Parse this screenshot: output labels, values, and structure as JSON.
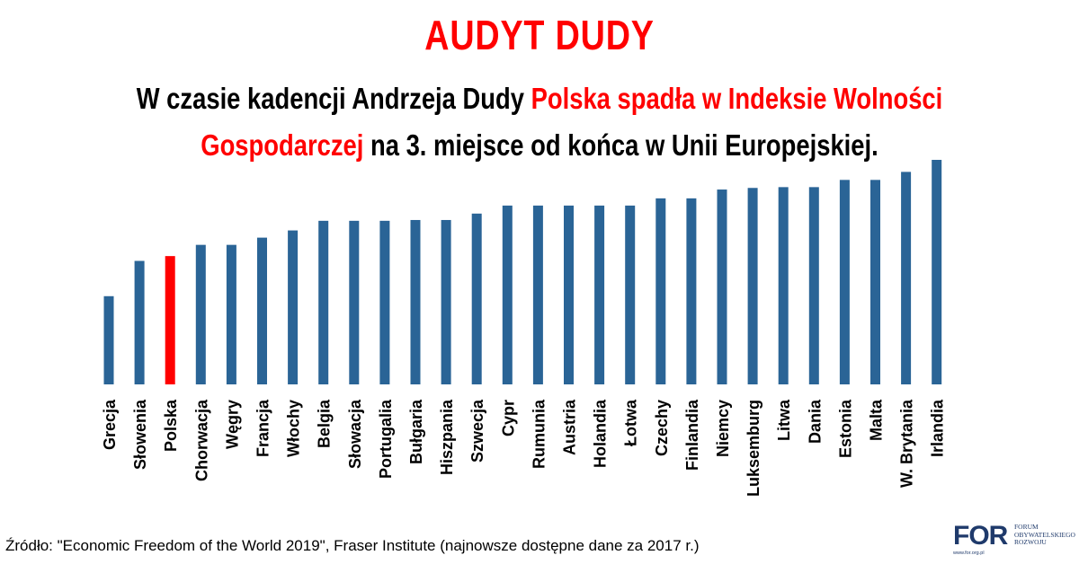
{
  "header": {
    "title": "AUDYT DUDY",
    "subtitle_part1": "W czasie kadencji Andrzeja Dudy ",
    "subtitle_highlight": "Polska spadła w Indeksie Wolności Gospodarczej",
    "subtitle_part2": " na 3. miejsce od końca w Unii Europejskiej."
  },
  "footer": {
    "source": "Źródło: \"Economic Freedom of the World 2019\", Fraser Institute (najnowsze dostępne dane za 2017 r.)",
    "logo_mark": "FOR",
    "logo_line1": "FORUM",
    "logo_line2": "OBYWATELSKIEGO",
    "logo_line3": "ROZWOJU",
    "logo_url": "www.for.org.pl"
  },
  "colors": {
    "bar": "#2a6496",
    "highlight": "#ff0000"
  },
  "chart_data": {
    "type": "bar",
    "categories": [
      "Grecja",
      "Słowenia",
      "Polska",
      "Chorwacja",
      "Węgry",
      "Francja",
      "Włochy",
      "Belgia",
      "Słowacja",
      "Portugalia",
      "Bułgaria",
      "Hiszpania",
      "Szwecja",
      "Cypr",
      "Rumunia",
      "Austria",
      "Holandia",
      "Łotwa",
      "Czechy",
      "Finlandia",
      "Niemcy",
      "Luksemburg",
      "Litwa",
      "Dania",
      "Estonia",
      "Malta",
      "W. Brytania",
      "Irlandia"
    ],
    "values": [
      6.7,
      7.14,
      7.2,
      7.34,
      7.34,
      7.43,
      7.52,
      7.64,
      7.64,
      7.64,
      7.65,
      7.65,
      7.73,
      7.83,
      7.83,
      7.83,
      7.83,
      7.83,
      7.92,
      7.92,
      8.03,
      8.05,
      8.06,
      8.06,
      8.15,
      8.15,
      8.25,
      8.4
    ],
    "highlight_category": "Polska",
    "ylim": [
      5.6,
      8.4
    ],
    "grid": false
  }
}
